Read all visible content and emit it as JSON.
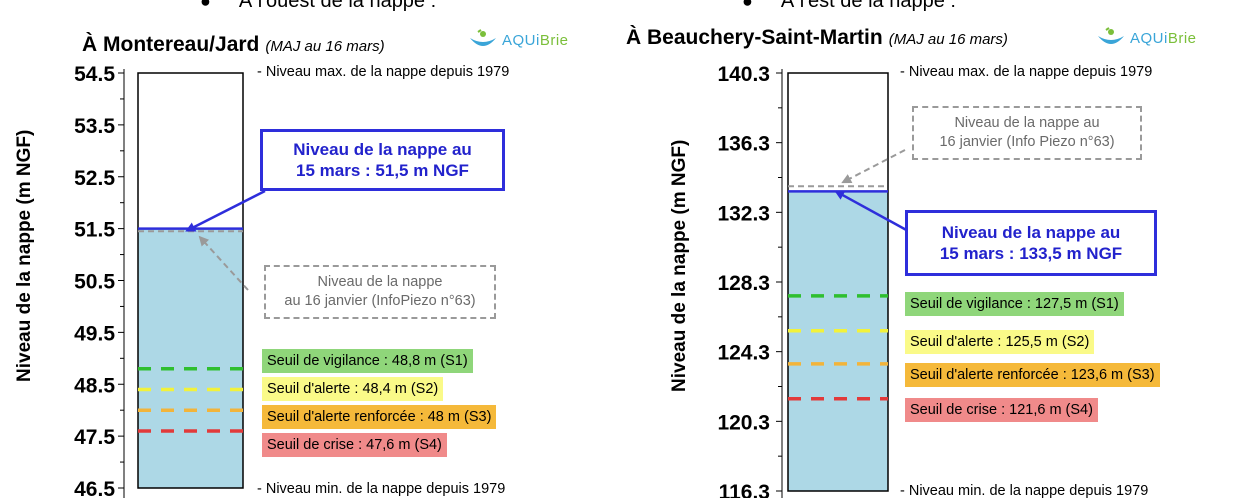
{
  "headers": {
    "west": "À l'ouest de la nappe :",
    "east": "À l'est de la nappe :"
  },
  "logo": {
    "part1": "AQUi",
    "part2": "Brie"
  },
  "ylabel": "Niveau de la nappe (m NGF)",
  "colors": {
    "water": "#add8e6",
    "level_line": "#2e2edb",
    "s1": "#2fbf2f",
    "s2": "#f2f23a",
    "s3": "#f2b43a",
    "s4": "#e23a3a",
    "s1_bg": "#8fd67a",
    "s2_bg": "#fafa88",
    "s3_bg": "#f5b93a",
    "s4_bg": "#f08a8a"
  },
  "chart_data": [
    {
      "type": "bar",
      "title": "À Montereau/Jard",
      "update_note": "(MAJ au 16 mars)",
      "ylabel": "Niveau de la nappe (m NGF)",
      "ylim": [
        46.5,
        54.5
      ],
      "ytick_labels": [
        "54.5",
        "53.5",
        "52.5",
        "51.5",
        "50.5",
        "49.5",
        "48.5",
        "47.5",
        "46.5"
      ],
      "max_note": "- Niveau max. de la nappe depuis 1979",
      "min_note": "- Niveau min. de la nappe depuis 1979",
      "current_level": 51.5,
      "current_label": [
        "Niveau de la nappe au",
        "15 mars : 51,5 m NGF"
      ],
      "previous_level": 51.45,
      "previous_label": [
        "Niveau de la nappe",
        "au 16 janvier (InfoPiezo n°63)"
      ],
      "thresholds": [
        {
          "name": "S1",
          "value": 48.8,
          "label": "Seuil de vigilance : 48,8 m (S1)"
        },
        {
          "name": "S2",
          "value": 48.4,
          "label": "Seuil d'alerte : 48,4 m (S2)"
        },
        {
          "name": "S3",
          "value": 48.0,
          "label": "Seuil d'alerte renforcée : 48 m (S3)"
        },
        {
          "name": "S4",
          "value": 47.6,
          "label": "Seuil de crise : 47,6 m (S4)"
        }
      ]
    },
    {
      "type": "bar",
      "title": "À Beauchery-Saint-Martin",
      "update_note": "(MAJ au 16 mars)",
      "ylabel": "Niveau de la nappe (m NGF)",
      "ylim": [
        116.3,
        140.3
      ],
      "ytick_labels": [
        "140.3",
        "136.3",
        "132.3",
        "128.3",
        "124.3",
        "120.3",
        "116.3"
      ],
      "max_note": "- Niveau max. de la nappe depuis 1979",
      "min_note": "- Niveau min. de la nappe depuis 1979",
      "current_level": 133.5,
      "current_label": [
        "Niveau de la nappe au",
        "15 mars : 133,5 m NGF"
      ],
      "previous_level": 133.8,
      "previous_label": [
        "Niveau de la nappe au",
        "16 janvier (Info Piezo n°63)"
      ],
      "thresholds": [
        {
          "name": "S1",
          "value": 127.5,
          "label": "Seuil de vigilance : 127,5 m (S1)"
        },
        {
          "name": "S2",
          "value": 125.5,
          "label": "Seuil d'alerte : 125,5 m (S2)"
        },
        {
          "name": "S3",
          "value": 123.6,
          "label": "Seuil d'alerte renforcée : 123,6 m (S3)"
        },
        {
          "name": "S4",
          "value": 121.6,
          "label": "Seuil de crise : 121,6 m (S4)"
        }
      ]
    }
  ]
}
